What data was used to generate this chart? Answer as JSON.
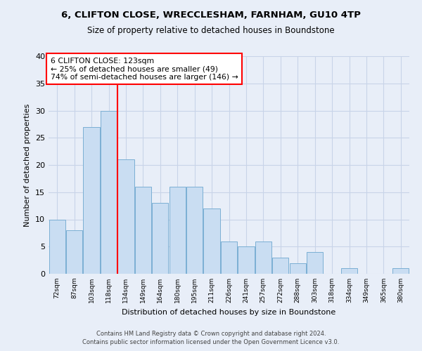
{
  "title_line1": "6, CLIFTON CLOSE, WRECCLESHAM, FARNHAM, GU10 4TP",
  "title_line2": "Size of property relative to detached houses in Boundstone",
  "xlabel": "Distribution of detached houses by size in Boundstone",
  "ylabel": "Number of detached properties",
  "bar_labels": [
    "72sqm",
    "87sqm",
    "103sqm",
    "118sqm",
    "134sqm",
    "149sqm",
    "164sqm",
    "180sqm",
    "195sqm",
    "211sqm",
    "226sqm",
    "241sqm",
    "257sqm",
    "272sqm",
    "288sqm",
    "303sqm",
    "318sqm",
    "334sqm",
    "349sqm",
    "365sqm",
    "380sqm"
  ],
  "bar_values": [
    10,
    8,
    27,
    30,
    21,
    16,
    13,
    16,
    16,
    12,
    6,
    5,
    6,
    3,
    2,
    4,
    0,
    1,
    0,
    0,
    1
  ],
  "bar_color": "#c9ddf2",
  "bar_edge_color": "#7bafd4",
  "annotation_text": "6 CLIFTON CLOSE: 123sqm\n← 25% of detached houses are smaller (49)\n74% of semi-detached houses are larger (146) →",
  "annotation_box_color": "white",
  "annotation_box_edge_color": "red",
  "vline_color": "red",
  "vline_x_idx": 3,
  "ylim": [
    0,
    40
  ],
  "yticks": [
    0,
    5,
    10,
    15,
    20,
    25,
    30,
    35,
    40
  ],
  "grid_color": "#c8d4e8",
  "background_color": "#e8eef8",
  "footer_line1": "Contains HM Land Registry data © Crown copyright and database right 2024.",
  "footer_line2": "Contains public sector information licensed under the Open Government Licence v3.0."
}
